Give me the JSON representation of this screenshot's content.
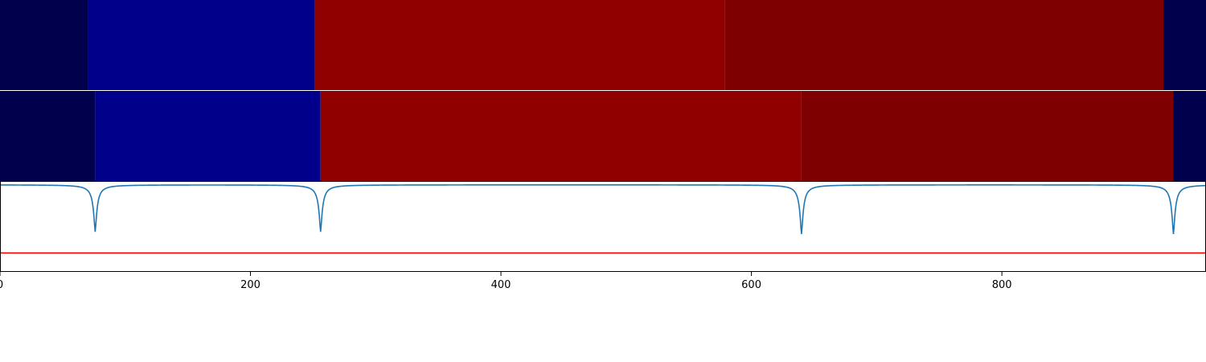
{
  "chart_data": [
    {
      "type": "heatmap",
      "row": "top",
      "xlim": [
        0,
        963
      ],
      "colormap": "seismic",
      "segments": [
        {
          "x0": 0,
          "x1": 70,
          "color": "#00004c"
        },
        {
          "x0": 70,
          "x1": 251,
          "color": "#00008a"
        },
        {
          "x0": 251,
          "x1": 579,
          "color": "#910000"
        },
        {
          "x0": 579,
          "x1": 929,
          "color": "#7f0000"
        },
        {
          "x0": 929,
          "x1": 963,
          "color": "#00004c"
        }
      ]
    },
    {
      "type": "heatmap",
      "row": "middle",
      "xlim": [
        0,
        963
      ],
      "colormap": "seismic",
      "segments": [
        {
          "x0": 0,
          "x1": 76,
          "color": "#00004c"
        },
        {
          "x0": 76,
          "x1": 256,
          "color": "#00008a"
        },
        {
          "x0": 256,
          "x1": 640,
          "color": "#910000"
        },
        {
          "x0": 640,
          "x1": 937,
          "color": "#7f0000"
        },
        {
          "x0": 937,
          "x1": 963,
          "color": "#00004c"
        }
      ]
    },
    {
      "type": "line",
      "row": "bottom",
      "xlim": [
        0,
        963
      ],
      "ylim": [
        -1.15,
        0.05
      ],
      "xticks": [
        0,
        200,
        400,
        600,
        800
      ],
      "xticklabels": [
        "0",
        "200",
        "400",
        "600",
        "800"
      ],
      "grid": false,
      "series": [
        {
          "color": "#1f77b4",
          "baseline": 0,
          "dips": [
            {
              "x": 76,
              "depth": -0.62
            },
            {
              "x": 256,
              "depth": -0.62
            },
            {
              "x": 640,
              "depth": -0.65
            },
            {
              "x": 937,
              "depth": -0.65
            }
          ]
        },
        {
          "color": "#ff0000",
          "constant": -0.9
        }
      ]
    }
  ]
}
